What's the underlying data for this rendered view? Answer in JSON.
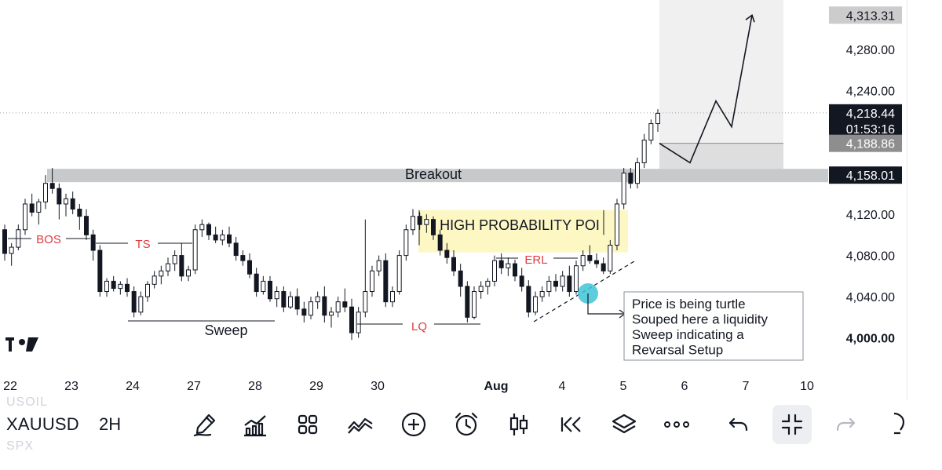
{
  "app": {
    "brand_logo_text": "TV"
  },
  "chart_data": {
    "type": "candlestick",
    "symbol": "XAUUSD",
    "interval": "2H",
    "ylim": [
      3970,
      4328
    ],
    "x_ticks": [
      "22",
      "23",
      "24",
      "27",
      "28",
      "29",
      "30",
      "Aug",
      "4",
      "5",
      "6",
      "7",
      "10"
    ],
    "y_ticks": [
      "4,280.00",
      "4,240.00",
      "4,120.00",
      "4,080.00",
      "4,040.00",
      "4,000.00"
    ],
    "y_tick_values": [
      4280,
      4240,
      4120,
      4080,
      4040,
      4000
    ],
    "price_badges": [
      {
        "label": "4,313.31",
        "value": 4313.31,
        "style": "gray-light"
      },
      {
        "label": "4,218.44",
        "sublabel": "01:53:16",
        "value": 4218.44,
        "style": "black"
      },
      {
        "label": "4,188.86",
        "value": 4188.86,
        "style": "gray"
      },
      {
        "label": "4,158.01",
        "value": 4158.01,
        "style": "black"
      }
    ],
    "candles": [
      [
        4105,
        4110,
        4075,
        4082
      ],
      [
        4082,
        4092,
        4070,
        4088
      ],
      [
        4088,
        4110,
        4085,
        4105
      ],
      [
        4105,
        4135,
        4100,
        4130
      ],
      [
        4130,
        4140,
        4118,
        4122
      ],
      [
        4122,
        4135,
        4110,
        4132
      ],
      [
        4132,
        4158,
        4125,
        4150
      ],
      [
        4150,
        4165,
        4140,
        4145
      ],
      [
        4145,
        4150,
        4115,
        4130
      ],
      [
        4130,
        4140,
        4118,
        4135
      ],
      [
        4135,
        4142,
        4120,
        4125
      ],
      [
        4125,
        4130,
        4105,
        4118
      ],
      [
        4118,
        4125,
        4095,
        4100
      ],
      [
        4100,
        4105,
        4075,
        4085
      ],
      [
        4085,
        4090,
        4040,
        4045
      ],
      [
        4045,
        4058,
        4040,
        4055
      ],
      [
        4055,
        4060,
        4045,
        4048
      ],
      [
        4048,
        4055,
        4042,
        4052
      ],
      [
        4052,
        4058,
        4040,
        4045
      ],
      [
        4045,
        4050,
        4020,
        4025
      ],
      [
        4025,
        4045,
        4022,
        4040
      ],
      [
        4040,
        4055,
        4035,
        4052
      ],
      [
        4052,
        4065,
        4048,
        4060
      ],
      [
        4060,
        4070,
        4052,
        4065
      ],
      [
        4065,
        4078,
        4060,
        4072
      ],
      [
        4072,
        4085,
        4065,
        4080
      ],
      [
        4080,
        4092,
        4055,
        4060
      ],
      [
        4060,
        4070,
        4055,
        4066
      ],
      [
        4066,
        4110,
        4062,
        4105
      ],
      [
        4105,
        4115,
        4098,
        4110
      ],
      [
        4110,
        4112,
        4095,
        4100
      ],
      [
        4100,
        4108,
        4092,
        4095
      ],
      [
        4095,
        4105,
        4090,
        4100
      ],
      [
        4100,
        4108,
        4088,
        4092
      ],
      [
        4092,
        4098,
        4075,
        4080
      ],
      [
        4080,
        4085,
        4070,
        4075
      ],
      [
        4075,
        4082,
        4058,
        4062
      ],
      [
        4062,
        4068,
        4040,
        4045
      ],
      [
        4045,
        4060,
        4042,
        4055
      ],
      [
        4055,
        4060,
        4035,
        4038
      ],
      [
        4038,
        4050,
        4030,
        4045
      ],
      [
        4045,
        4050,
        4025,
        4030
      ],
      [
        4030,
        4045,
        4028,
        4040
      ],
      [
        4040,
        4048,
        4022,
        4028
      ],
      [
        4028,
        4035,
        4015,
        4022
      ],
      [
        4022,
        4040,
        4018,
        4035
      ],
      [
        4035,
        4045,
        4028,
        4040
      ],
      [
        4040,
        4050,
        4015,
        4022
      ],
      [
        4022,
        4030,
        4010,
        4025
      ],
      [
        4025,
        4040,
        4020,
        4035
      ],
      [
        4035,
        4048,
        4025,
        4030
      ],
      [
        4030,
        4038,
        3998,
        4005
      ],
      [
        4005,
        4030,
        4000,
        4025
      ],
      [
        4025,
        4115,
        4020,
        4045
      ],
      [
        4045,
        4070,
        4040,
        4065
      ],
      [
        4065,
        4080,
        4060,
        4075
      ],
      [
        4075,
        4082,
        4030,
        4035
      ],
      [
        4035,
        4050,
        4030,
        4045
      ],
      [
        4045,
        4085,
        4042,
        4080
      ],
      [
        4080,
        4110,
        4075,
        4105
      ],
      [
        4105,
        4125,
        4100,
        4118
      ],
      [
        4118,
        4122,
        4105,
        4110
      ],
      [
        4110,
        4120,
        4102,
        4115
      ],
      [
        4115,
        4118,
        4095,
        4100
      ],
      [
        4100,
        4105,
        4080,
        4085
      ],
      [
        4085,
        4092,
        4072,
        4078
      ],
      [
        4078,
        4085,
        4060,
        4065
      ],
      [
        4065,
        4072,
        4040,
        4050
      ],
      [
        4050,
        4055,
        4015,
        4020
      ],
      [
        4020,
        4050,
        4018,
        4045
      ],
      [
        4045,
        4055,
        4038,
        4050
      ],
      [
        4050,
        4058,
        4042,
        4055
      ],
      [
        4055,
        4080,
        4050,
        4075
      ],
      [
        4075,
        4082,
        4062,
        4068
      ],
      [
        4068,
        4078,
        4060,
        4072
      ],
      [
        4072,
        4076,
        4055,
        4060
      ],
      [
        4060,
        4068,
        4045,
        4050
      ],
      [
        4050,
        4056,
        4020,
        4025
      ],
      [
        4025,
        4045,
        4022,
        4040
      ],
      [
        4040,
        4050,
        4035,
        4045
      ],
      [
        4045,
        4060,
        4040,
        4055
      ],
      [
        4055,
        4062,
        4045,
        4050
      ],
      [
        4050,
        4065,
        4045,
        4060
      ],
      [
        4060,
        4070,
        4040,
        4045
      ],
      [
        4045,
        4075,
        4042,
        4070
      ],
      [
        4070,
        4085,
        4065,
        4080
      ],
      [
        4080,
        4090,
        4072,
        4075
      ],
      [
        4075,
        4082,
        4068,
        4072
      ],
      [
        4072,
        4078,
        4062,
        4065
      ],
      [
        4065,
        4095,
        4062,
        4090
      ],
      [
        4090,
        4135,
        4085,
        4130
      ],
      [
        4130,
        4165,
        4125,
        4160
      ],
      [
        4160,
        4165,
        4145,
        4150
      ],
      [
        4150,
        4175,
        4145,
        4170
      ],
      [
        4170,
        4198,
        4165,
        4192
      ],
      [
        4192,
        4212,
        4188,
        4208
      ],
      [
        4208,
        4222,
        4200,
        4218
      ]
    ],
    "annotations": {
      "breakout": "Breakout",
      "bos": "BOS",
      "ts": "TS",
      "sweep": "Sweep",
      "lq": "LQ",
      "erl": "ERL",
      "high_prob_poi": "HIGH PROBABILITY POI",
      "note_lines": [
        "Price is being turtle",
        "Souped here a liquidity",
        "Sweep indicating a",
        "Revarsal Setup"
      ]
    },
    "levels": {
      "breakout": 4158,
      "projection_base": 4188.86
    },
    "projection_path": [
      4188.86,
      4170,
      4230,
      4205,
      4313.31
    ],
    "grid": false,
    "colors": {
      "candle": "#131722",
      "breakout_band": "#c8c9cb",
      "poi_zone": "#fdf7c4",
      "projection_zone": "#f0f0f0",
      "accent_label": "#e03a3e",
      "sweep_marker": "#40c4d6"
    }
  },
  "toolbar": {
    "symbol": "XAUUSD",
    "interval": "2H",
    "ghost_above": "USOIL",
    "ghost_below": "SPX",
    "buttons": [
      {
        "name": "drawing-pen",
        "icon": "pen-icon"
      },
      {
        "name": "indicators",
        "icon": "indicators-icon"
      },
      {
        "name": "layouts",
        "icon": "grid-icon"
      },
      {
        "name": "compare",
        "icon": "compare-icon"
      },
      {
        "name": "add",
        "icon": "plus-circle-icon"
      },
      {
        "name": "alert",
        "icon": "alarm-icon"
      },
      {
        "name": "chart-type",
        "icon": "candles-icon"
      },
      {
        "name": "replay",
        "icon": "rewind-icon"
      },
      {
        "name": "layers",
        "icon": "layers-icon"
      },
      {
        "name": "more",
        "icon": "more-icon"
      },
      {
        "name": "undo",
        "icon": "undo-icon"
      },
      {
        "name": "collapse",
        "icon": "collapse-icon"
      },
      {
        "name": "redo",
        "icon": "redo-icon"
      }
    ]
  }
}
